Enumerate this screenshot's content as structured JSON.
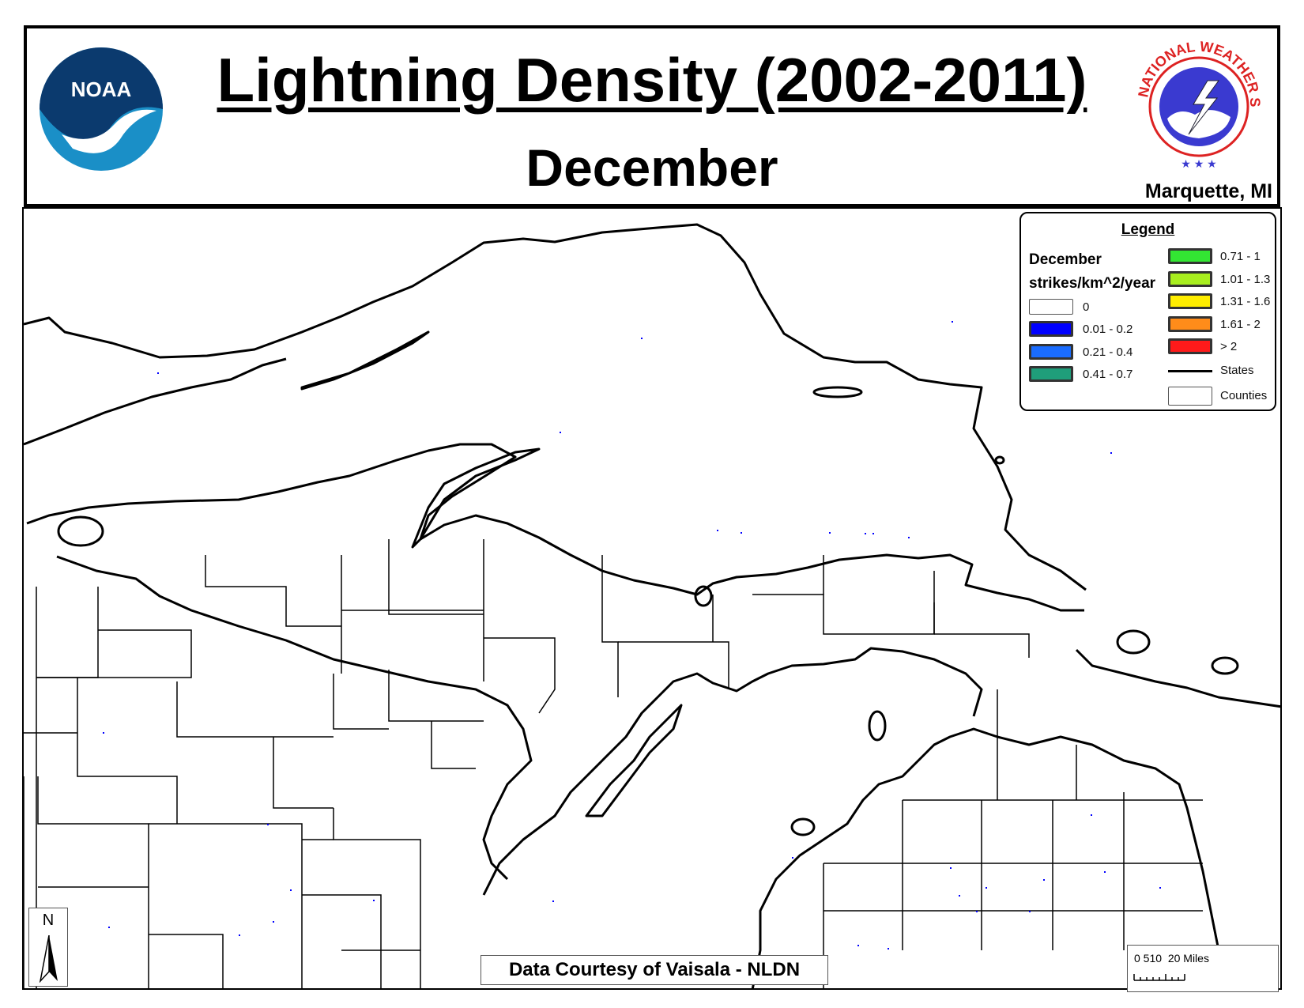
{
  "header": {
    "title": "Lightning Density (2002-2011)",
    "subtitle": "December",
    "office": "Marquette, MI",
    "left_logo": "NOAA",
    "right_logo_text": "NATIONAL WEATHER SERVICE"
  },
  "legend": {
    "title": "Legend",
    "heading_month": "December",
    "heading_units": "strikes/km^2/year",
    "classes": [
      {
        "label": "0",
        "color": "#ffffff"
      },
      {
        "label": "0.01 - 0.2",
        "color": "#0000ff"
      },
      {
        "label": "0.21 - 0.4",
        "color": "#1a6cff"
      },
      {
        "label": "0.41 - 0.7",
        "color": "#1f9e7a"
      },
      {
        "label": "0.71 - 1",
        "color": "#33e633"
      },
      {
        "label": "1.01 - 1.3",
        "color": "#a8ee1f"
      },
      {
        "label": "1.31 - 1.6",
        "color": "#ffee00"
      },
      {
        "label": "1.61 - 2",
        "color": "#ff8c1a"
      },
      {
        "label": "> 2",
        "color": "#ff1a1a"
      }
    ],
    "states_label": "States",
    "counties_label": "Counties"
  },
  "credit": "Data Courtesy of Vaisala - NLDN",
  "north_arrow_label": "N",
  "scale_bar": {
    "label": "0 510  20 Miles"
  },
  "colors": {
    "outline": "#000000",
    "strike": "#0000ff"
  }
}
